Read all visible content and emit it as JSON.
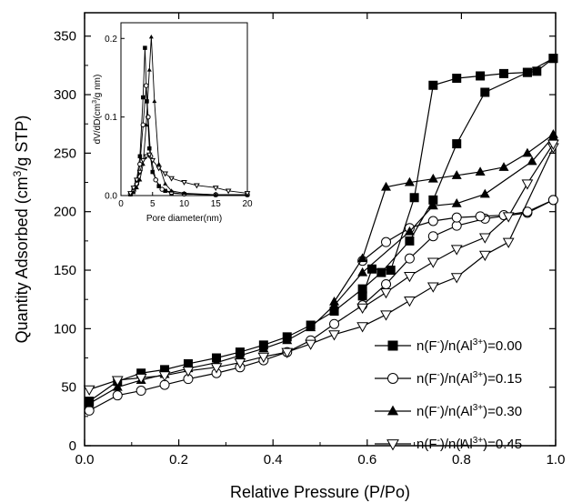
{
  "chart_data": [
    {
      "type": "line",
      "title": "",
      "xlabel": "Relative Pressure (P/Po)",
      "ylabel_parts": [
        "Quantity Adsorbed (cm",
        "3",
        "/g STP)"
      ],
      "xlim": [
        0,
        1.0
      ],
      "ylim": [
        0,
        370
      ],
      "xticks": [
        "0.0",
        "0.2",
        "0.4",
        "0.6",
        "0.8",
        "1.0"
      ],
      "yticks": [
        "0",
        "50",
        "100",
        "150",
        "200",
        "250",
        "300",
        "350"
      ],
      "grid": false,
      "legend": "bottom-right",
      "legend_prefix": [
        "n(F",
        ")/n(Al",
        ")="
      ],
      "legend_sups": [
        "-",
        "3+"
      ],
      "series": [
        {
          "name": "n(F-)/n(Al3+)=0.00",
          "name_value": "0.00",
          "marker": "square-filled",
          "adsorption": [
            [
              0.01,
              38
            ],
            [
              0.07,
              55
            ],
            [
              0.12,
              62
            ],
            [
              0.17,
              65
            ],
            [
              0.22,
              70
            ],
            [
              0.28,
              75
            ],
            [
              0.33,
              80
            ],
            [
              0.38,
              86
            ],
            [
              0.43,
              93
            ],
            [
              0.48,
              103
            ],
            [
              0.53,
              115
            ],
            [
              0.59,
              134
            ],
            [
              0.63,
              148
            ],
            [
              0.69,
              175
            ],
            [
              0.74,
              210
            ],
            [
              0.79,
              258
            ],
            [
              0.85,
              302
            ],
            [
              0.94,
              319
            ],
            [
              0.995,
              331
            ]
          ],
          "desorption": [
            [
              0.995,
              331
            ],
            [
              0.96,
              320
            ],
            [
              0.94,
              319
            ],
            [
              0.89,
              318
            ],
            [
              0.84,
              316
            ],
            [
              0.79,
              314
            ],
            [
              0.74,
              308
            ],
            [
              0.7,
              212
            ],
            [
              0.65,
              150
            ],
            [
              0.61,
              151
            ],
            [
              0.59,
              128
            ]
          ]
        },
        {
          "name": "n(F-)/n(Al3+)=0.15",
          "name_value": "0.15",
          "marker": "circle-open",
          "adsorption": [
            [
              0.01,
              30
            ],
            [
              0.07,
              43
            ],
            [
              0.12,
              47
            ],
            [
              0.17,
              52
            ],
            [
              0.22,
              57
            ],
            [
              0.28,
              62
            ],
            [
              0.33,
              67
            ],
            [
              0.38,
              73
            ],
            [
              0.43,
              80
            ],
            [
              0.48,
              90
            ],
            [
              0.53,
              104
            ],
            [
              0.59,
              120
            ],
            [
              0.64,
              138
            ],
            [
              0.69,
              160
            ],
            [
              0.74,
              179
            ],
            [
              0.79,
              188
            ],
            [
              0.85,
              194
            ],
            [
              0.94,
              199
            ],
            [
              0.995,
              210
            ]
          ],
          "desorption": [
            [
              0.995,
              210
            ],
            [
              0.94,
              200
            ],
            [
              0.89,
              197
            ],
            [
              0.84,
              196
            ],
            [
              0.79,
              195
            ],
            [
              0.74,
              192
            ],
            [
              0.69,
              186
            ],
            [
              0.64,
              174
            ],
            [
              0.59,
              158
            ]
          ]
        },
        {
          "name": "n(F-)/n(Al3+)=0.30",
          "name_value": "0.30",
          "marker": "triangle-up-filled",
          "adsorption": [
            [
              0.01,
              36
            ],
            [
              0.07,
              50
            ],
            [
              0.12,
              56
            ],
            [
              0.17,
              61
            ],
            [
              0.22,
              66
            ],
            [
              0.28,
              71
            ],
            [
              0.33,
              77
            ],
            [
              0.38,
              83
            ],
            [
              0.43,
              90
            ],
            [
              0.48,
              101
            ],
            [
              0.53,
              120
            ],
            [
              0.59,
              148
            ],
            [
              0.69,
              183
            ],
            [
              0.74,
              205
            ],
            [
              0.79,
              207
            ],
            [
              0.85,
              215
            ],
            [
              0.95,
              243
            ],
            [
              0.995,
              264
            ]
          ],
          "desorption": [
            [
              0.995,
              266
            ],
            [
              0.94,
              250
            ],
            [
              0.89,
              238
            ],
            [
              0.84,
              234
            ],
            [
              0.79,
              231
            ],
            [
              0.74,
              228
            ],
            [
              0.69,
              225
            ],
            [
              0.64,
              221
            ],
            [
              0.59,
              160
            ],
            [
              0.53,
              123
            ]
          ]
        },
        {
          "name": "n(F-)/n(Al3+)=0.45",
          "name_value": "0.45",
          "marker": "triangle-down-open",
          "adsorption": [
            [
              0.01,
              48
            ],
            [
              0.07,
              56
            ],
            [
              0.12,
              58
            ],
            [
              0.17,
              60
            ],
            [
              0.22,
              64
            ],
            [
              0.28,
              67
            ],
            [
              0.33,
              71
            ],
            [
              0.38,
              76
            ],
            [
              0.43,
              80
            ],
            [
              0.48,
              87
            ],
            [
              0.53,
              95
            ],
            [
              0.59,
              102
            ],
            [
              0.64,
              112
            ],
            [
              0.69,
              124
            ],
            [
              0.74,
              136
            ],
            [
              0.79,
              144
            ],
            [
              0.85,
              163
            ],
            [
              0.9,
              174
            ],
            [
              0.995,
              255
            ]
          ],
          "desorption": [
            [
              0.995,
              258
            ],
            [
              0.94,
              224
            ],
            [
              0.9,
              196
            ],
            [
              0.85,
              178
            ],
            [
              0.79,
              168
            ],
            [
              0.74,
              157
            ],
            [
              0.69,
              145
            ],
            [
              0.64,
              131
            ],
            [
              0.59,
              118
            ]
          ]
        }
      ]
    },
    {
      "type": "line",
      "title": "",
      "xlabel": "Pore diameter(nm)",
      "ylabel_parts": [
        "dV/dD(cm",
        "3",
        "/g nm)"
      ],
      "xlim": [
        0,
        20
      ],
      "ylim": [
        0,
        0.22
      ],
      "xticks": [
        "0",
        "5",
        "10",
        "15",
        "20"
      ],
      "yticks": [
        "0.0",
        "0.1",
        "0.2"
      ],
      "grid": false,
      "series": [
        {
          "name": "n(F-)/n(Al3+)=0.00",
          "marker": "square-filled",
          "points": [
            [
              1.5,
              0.002
            ],
            [
              2.0,
              0.008
            ],
            [
              2.5,
              0.02
            ],
            [
              3.0,
              0.05
            ],
            [
              3.5,
              0.125
            ],
            [
              3.8,
              0.188
            ],
            [
              4.1,
              0.12
            ],
            [
              4.5,
              0.06
            ],
            [
              5.0,
              0.03
            ],
            [
              6.0,
              0.012
            ],
            [
              7.0,
              0.006
            ],
            [
              8.0,
              0.003
            ],
            [
              10,
              0.002
            ],
            [
              15,
              0.001
            ],
            [
              20,
              0.001
            ]
          ]
        },
        {
          "name": "n(F-)/n(Al3+)=0.15",
          "marker": "circle-open",
          "points": [
            [
              1.5,
              0.002
            ],
            [
              2.0,
              0.006
            ],
            [
              2.5,
              0.015
            ],
            [
              3.0,
              0.04
            ],
            [
              3.5,
              0.09
            ],
            [
              4.0,
              0.14
            ],
            [
              4.3,
              0.1
            ],
            [
              4.7,
              0.05
            ],
            [
              5.5,
              0.02
            ],
            [
              6.5,
              0.008
            ],
            [
              8.0,
              0.004
            ],
            [
              10,
              0.002
            ],
            [
              15,
              0.001
            ],
            [
              20,
              0.001
            ]
          ]
        },
        {
          "name": "n(F-)/n(Al3+)=0.30",
          "marker": "triangle-up-filled",
          "points": [
            [
              1.5,
              0.001
            ],
            [
              2.0,
              0.004
            ],
            [
              2.5,
              0.01
            ],
            [
              3.0,
              0.02
            ],
            [
              3.5,
              0.04
            ],
            [
              4.0,
              0.09
            ],
            [
              4.5,
              0.16
            ],
            [
              4.8,
              0.202
            ],
            [
              5.3,
              0.12
            ],
            [
              6.0,
              0.04
            ],
            [
              7.0,
              0.015
            ],
            [
              8.0,
              0.006
            ],
            [
              10,
              0.003
            ],
            [
              15,
              0.001
            ],
            [
              20,
              0.001
            ]
          ]
        },
        {
          "name": "n(F-)/n(Al3+)=0.45",
          "marker": "triangle-down-open",
          "points": [
            [
              1.5,
              0.003
            ],
            [
              2.0,
              0.01
            ],
            [
              2.5,
              0.02
            ],
            [
              3.0,
              0.03
            ],
            [
              3.5,
              0.045
            ],
            [
              4.0,
              0.05
            ],
            [
              4.5,
              0.052
            ],
            [
              5.0,
              0.045
            ],
            [
              6.0,
              0.035
            ],
            [
              7.0,
              0.028
            ],
            [
              8.0,
              0.022
            ],
            [
              10,
              0.017
            ],
            [
              12,
              0.013
            ],
            [
              15,
              0.01
            ],
            [
              17,
              0.006
            ],
            [
              20,
              0.003
            ]
          ]
        }
      ]
    }
  ]
}
